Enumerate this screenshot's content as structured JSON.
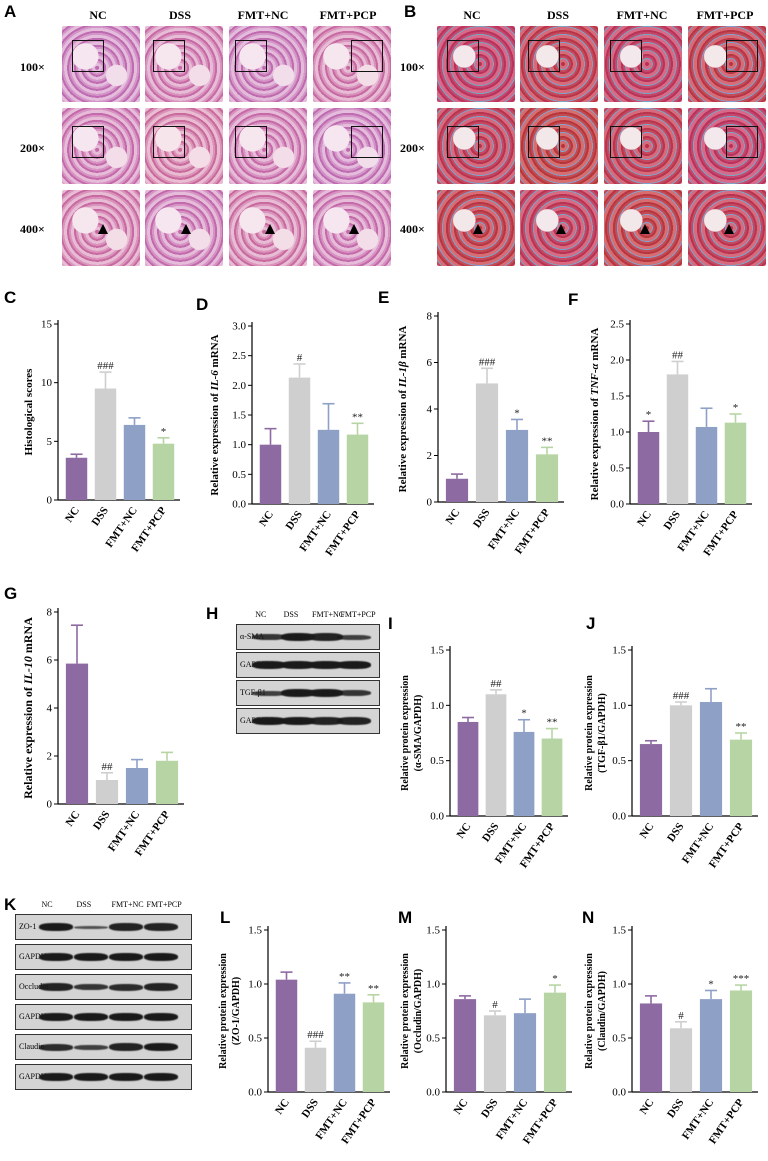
{
  "panels": {
    "A": {
      "letter": "A",
      "columns": [
        "NC",
        "DSS",
        "FMT+NC",
        "FMT+PCP"
      ],
      "rows": [
        "100×",
        "200×",
        "400×"
      ]
    },
    "B": {
      "letter": "B",
      "columns": [
        "NC",
        "DSS",
        "FMT+NC",
        "FMT+PCP"
      ],
      "rows": [
        "100×",
        "200×",
        "400×"
      ]
    },
    "H": {
      "letter": "H",
      "lanes": [
        "NC",
        "DSS",
        "FMT+NC",
        "FMT+PCP"
      ],
      "blots": [
        "α-SMA",
        "GAPDH",
        "TGF-β1",
        "GAPDH"
      ]
    },
    "K": {
      "letter": "K",
      "lanes": [
        "NC",
        "DSS",
        "FMT+NC",
        "FMT+PCP"
      ],
      "blots": [
        "ZO-1",
        "GAPDH",
        "Occludin",
        "GAPDH",
        "Claudin",
        "GAPDH"
      ]
    }
  },
  "colors": {
    "NC": "#8e6aa2",
    "DSS": "#cfcfcf",
    "FMT+NC": "#8fa0c6",
    "FMT+PCP": "#b7d5a4"
  },
  "chart_data": [
    {
      "id": "C",
      "letter": "C",
      "type": "bar",
      "categories": [
        "NC",
        "DSS",
        "FMT+NC",
        "FMT+PCP"
      ],
      "values": [
        3.6,
        9.5,
        6.4,
        4.8
      ],
      "errors": [
        0.3,
        1.4,
        0.6,
        0.5
      ],
      "sig": [
        "",
        "###",
        "",
        "*"
      ],
      "ylabel": "Histological scores",
      "ylabel_italic": "",
      "ylabel_post": "",
      "ylim": [
        0,
        15
      ],
      "ticks": [
        0,
        5,
        10,
        15
      ]
    },
    {
      "id": "D",
      "letter": "D",
      "type": "bar",
      "categories": [
        "NC",
        "DSS",
        "FMT+NC",
        "FMT+PCP"
      ],
      "values": [
        1.0,
        2.13,
        1.25,
        1.17
      ],
      "errors": [
        0.27,
        0.23,
        0.44,
        0.19
      ],
      "sig": [
        "",
        "#",
        "",
        "**"
      ],
      "ylabel": "Relative expression of ",
      "ylabel_italic": "IL-6",
      "ylabel_post": " mRNA",
      "ylim": [
        0,
        3.0
      ],
      "ticks": [
        "0.0",
        "0.5",
        "1.0",
        "1.5",
        "2.0",
        "2.5",
        "3.0"
      ]
    },
    {
      "id": "E",
      "letter": "E",
      "type": "bar",
      "categories": [
        "NC",
        "DSS",
        "FMT+NC",
        "FMT+PCP"
      ],
      "values": [
        1.0,
        5.1,
        3.1,
        2.05
      ],
      "errors": [
        0.2,
        0.65,
        0.45,
        0.3
      ],
      "sig": [
        "",
        "###",
        "*",
        "**"
      ],
      "ylabel": "Relative expression of ",
      "ylabel_italic": "IL-1β",
      "ylabel_post": " mRNA",
      "ylim": [
        0,
        8
      ],
      "ticks": [
        0,
        2,
        4,
        6,
        8
      ]
    },
    {
      "id": "F",
      "letter": "F",
      "type": "bar",
      "categories": [
        "NC",
        "DSS",
        "FMT+NC",
        "FMT+PCP"
      ],
      "values": [
        1.0,
        1.8,
        1.07,
        1.13
      ],
      "errors": [
        0.15,
        0.18,
        0.26,
        0.12
      ],
      "sig": [
        "*",
        "##",
        "",
        "*"
      ],
      "ylabel": "Relative expression of ",
      "ylabel_italic": "TNF-α",
      "ylabel_post": " mRNA",
      "ylim": [
        0,
        2.5
      ],
      "ticks": [
        "0.0",
        "0.5",
        "1.0",
        "1.5",
        "2.0",
        "2.5"
      ]
    },
    {
      "id": "G",
      "letter": "G",
      "type": "bar",
      "categories": [
        "NC",
        "DSS",
        "FMT+NC",
        "FMT+PCP"
      ],
      "values": [
        5.85,
        1.0,
        1.5,
        1.8
      ],
      "errors": [
        1.6,
        0.3,
        0.35,
        0.35
      ],
      "sig": [
        "",
        "##",
        "",
        ""
      ],
      "ylabel": "Relative expression of ",
      "ylabel_italic": "IL-10",
      "ylabel_post": " mRNA",
      "ylim": [
        0,
        8
      ],
      "ticks": [
        0,
        2,
        4,
        6,
        8
      ]
    },
    {
      "id": "I",
      "letter": "I",
      "type": "bar",
      "categories": [
        "NC",
        "DSS",
        "FMT+NC",
        "FMT+PCP"
      ],
      "values": [
        0.85,
        1.1,
        0.76,
        0.7
      ],
      "errors": [
        0.04,
        0.04,
        0.11,
        0.09
      ],
      "sig": [
        "",
        "##",
        "*",
        "**"
      ],
      "ylabel": "Relative protein expression",
      "ylabel_italic": "",
      "ylabel_post": "",
      "ylabel2": "(α-SMA/GAPDH)",
      "ylim": [
        0,
        1.5
      ],
      "ticks": [
        "0.0",
        "0.5",
        "1.0",
        "1.5"
      ]
    },
    {
      "id": "J",
      "letter": "J",
      "type": "bar",
      "categories": [
        "NC",
        "DSS",
        "FMT+NC",
        "FMT+PCP"
      ],
      "values": [
        0.65,
        1.0,
        1.03,
        0.69
      ],
      "errors": [
        0.03,
        0.03,
        0.12,
        0.06
      ],
      "sig": [
        "",
        "###",
        "",
        "**"
      ],
      "ylabel": "Relative protein expression",
      "ylabel_italic": "",
      "ylabel_post": "",
      "ylabel2": "(TGF-β1/GAPDH)",
      "ylim": [
        0,
        1.5
      ],
      "ticks": [
        "0.0",
        "0.5",
        "1.0",
        "1.5"
      ]
    },
    {
      "id": "L",
      "letter": "L",
      "type": "bar",
      "categories": [
        "NC",
        "DSS",
        "FMT+NC",
        "FMT+PCP"
      ],
      "values": [
        1.04,
        0.41,
        0.91,
        0.83
      ],
      "errors": [
        0.07,
        0.06,
        0.1,
        0.07
      ],
      "sig": [
        "",
        "###",
        "**",
        "**"
      ],
      "ylabel": "Relative protein expression",
      "ylabel_italic": "",
      "ylabel_post": "",
      "ylabel2": "(ZO-1/GAPDH)",
      "ylim": [
        0,
        1.5
      ],
      "ticks": [
        "0.0",
        "0.5",
        "1.0",
        "1.5"
      ]
    },
    {
      "id": "M",
      "letter": "M",
      "type": "bar",
      "categories": [
        "NC",
        "DSS",
        "FMT+NC",
        "FMT+PCP"
      ],
      "values": [
        0.86,
        0.71,
        0.73,
        0.92
      ],
      "errors": [
        0.03,
        0.04,
        0.13,
        0.07
      ],
      "sig": [
        "",
        "#",
        "",
        "*"
      ],
      "ylabel": "Relative protein expression",
      "ylabel_italic": "",
      "ylabel_post": "",
      "ylabel2": "(Occludin/GAPDH)",
      "ylim": [
        0,
        1.5
      ],
      "ticks": [
        "0.0",
        "0.5",
        "1.0",
        "1.5"
      ]
    },
    {
      "id": "N",
      "letter": "N",
      "type": "bar",
      "categories": [
        "NC",
        "DSS",
        "FMT+NC",
        "FMT+PCP"
      ],
      "values": [
        0.82,
        0.59,
        0.86,
        0.94
      ],
      "errors": [
        0.07,
        0.06,
        0.08,
        0.05
      ],
      "sig": [
        "",
        "#",
        "*",
        "***"
      ],
      "ylabel": "Relative protein expression",
      "ylabel_italic": "",
      "ylabel_post": "",
      "ylabel2": "(Claudin/GAPDH)",
      "ylim": [
        0,
        1.5
      ],
      "ticks": [
        "0.0",
        "0.5",
        "1.0",
        "1.5"
      ]
    }
  ]
}
